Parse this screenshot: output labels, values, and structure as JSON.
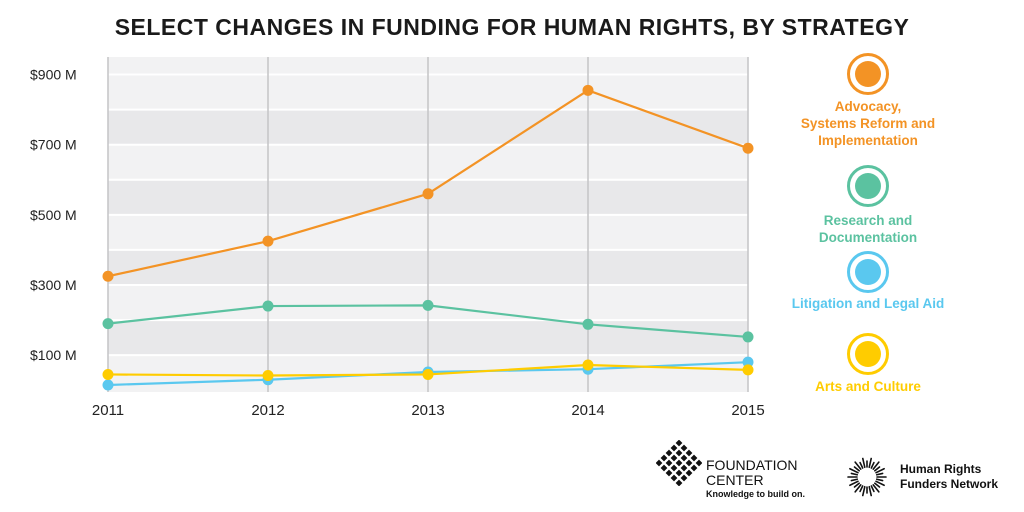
{
  "chart_data": {
    "type": "line",
    "title": "SELECT CHANGES IN FUNDING FOR HUMAN RIGHTS, BY STRATEGY",
    "x": [
      "2011",
      "2012",
      "2013",
      "2014",
      "2015"
    ],
    "ylim": [
      -5,
      950
    ],
    "yticks": [
      {
        "value": 900,
        "label": "$900 M"
      },
      {
        "value": 700,
        "label": "$700 M"
      },
      {
        "value": 500,
        "label": "$500 M"
      },
      {
        "value": 300,
        "label": "$300 M"
      },
      {
        "value": 100,
        "label": "$100 M"
      }
    ],
    "grid": true,
    "legend_position": "right",
    "series": [
      {
        "name": "Advocacy,\nSystems Reform and\nImplementation",
        "color": "#f39325",
        "values": [
          325,
          425,
          560,
          855,
          690
        ]
      },
      {
        "name": "Research and\nDocumentation",
        "color": "#5bc2a0",
        "values": [
          190,
          240,
          242,
          188,
          152
        ]
      },
      {
        "name": "Litigation and Legal Aid",
        "color": "#5ac8ef",
        "values": [
          15,
          30,
          52,
          60,
          80
        ]
      },
      {
        "name": "Arts and Culture",
        "color": "#ffcc00",
        "values": [
          45,
          42,
          45,
          72,
          58
        ]
      }
    ]
  },
  "logos": {
    "foundation_center": {
      "name": "FOUNDATION\nCENTER",
      "tagline": "Knowledge to build on."
    },
    "hrfn": {
      "name": "Human Rights\nFunders Network"
    }
  }
}
